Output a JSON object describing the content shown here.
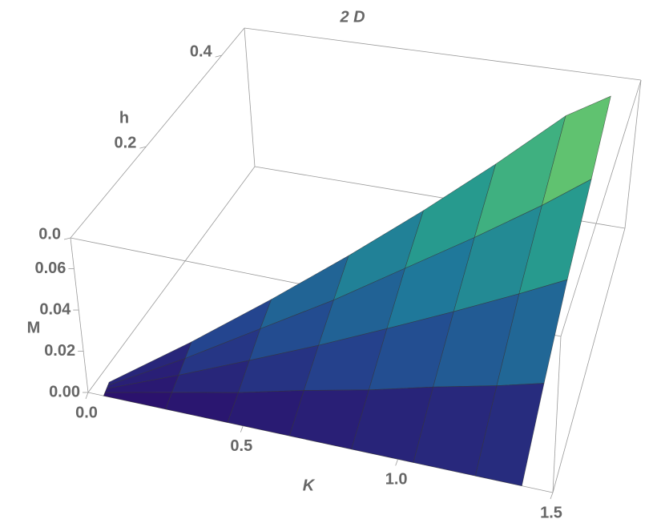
{
  "chart_data": {
    "type": "surface",
    "title": "2 D",
    "xlabel": "K",
    "ylabel": "h",
    "zlabel": "M",
    "xlim": [
      0,
      1.5
    ],
    "ylim": [
      0,
      0.46
    ],
    "zlim": [
      0,
      0.075
    ],
    "xticks": [
      {
        "value": 0,
        "label": "0.0"
      },
      {
        "value": 0.5,
        "label": "0.5"
      },
      {
        "value": 1,
        "label": "1.0"
      },
      {
        "value": 1.5,
        "label": "1.5"
      }
    ],
    "yticks": [
      {
        "value": 0,
        "label": "0.0"
      },
      {
        "value": 0.2,
        "label": "0.2"
      },
      {
        "value": 0.4,
        "label": "0.4"
      }
    ],
    "zticks": [
      {
        "value": 0,
        "label": "0.00"
      },
      {
        "value": 0.02,
        "label": "0.02"
      },
      {
        "value": 0.04,
        "label": "0.04"
      },
      {
        "value": 0.06,
        "label": "0.06"
      }
    ],
    "colormap": [
      "#2b0f6b",
      "#24458f",
      "#1f7a9a",
      "#2aa58a",
      "#6cc86a",
      "#dce85a"
    ],
    "surface": [
      {
        "K": 0.05,
        "h": [
          0,
          0.004,
          0.009,
          0.013,
          0.017
        ],
        "M": [
          0,
          0.0006,
          0.0013,
          0.0019,
          0.0025
        ]
      },
      {
        "K": 0.25,
        "h": [
          0,
          0.021,
          0.043,
          0.064,
          0.085
        ],
        "M": [
          0,
          0.003,
          0.006,
          0.009,
          0.012
        ]
      },
      {
        "K": 0.45,
        "h": [
          0,
          0.038,
          0.077,
          0.115,
          0.153
        ],
        "M": [
          0,
          0.005,
          0.011,
          0.017,
          0.022
        ]
      },
      {
        "K": 0.65,
        "h": [
          0,
          0.055,
          0.11,
          0.166,
          0.221
        ],
        "M": [
          0,
          0.008,
          0.016,
          0.024,
          0.032
        ]
      },
      {
        "K": 0.85,
        "h": [
          0,
          0.072,
          0.145,
          0.217,
          0.289
        ],
        "M": [
          0,
          0.01,
          0.021,
          0.032,
          0.042
        ]
      },
      {
        "K": 1.05,
        "h": [
          0,
          0.089,
          0.179,
          0.268,
          0.357
        ],
        "M": [
          0,
          0.013,
          0.026,
          0.039,
          0.052
        ]
      },
      {
        "K": 1.25,
        "h": [
          0,
          0.106,
          0.213,
          0.319,
          0.425
        ],
        "M": [
          0,
          0.015,
          0.031,
          0.046,
          0.062
        ]
      },
      {
        "K": 1.4,
        "h": [
          0,
          0.119,
          0.238,
          0.357,
          0.446
        ],
        "M": [
          0,
          0.017,
          0.035,
          0.052,
          0.069
        ]
      }
    ]
  }
}
